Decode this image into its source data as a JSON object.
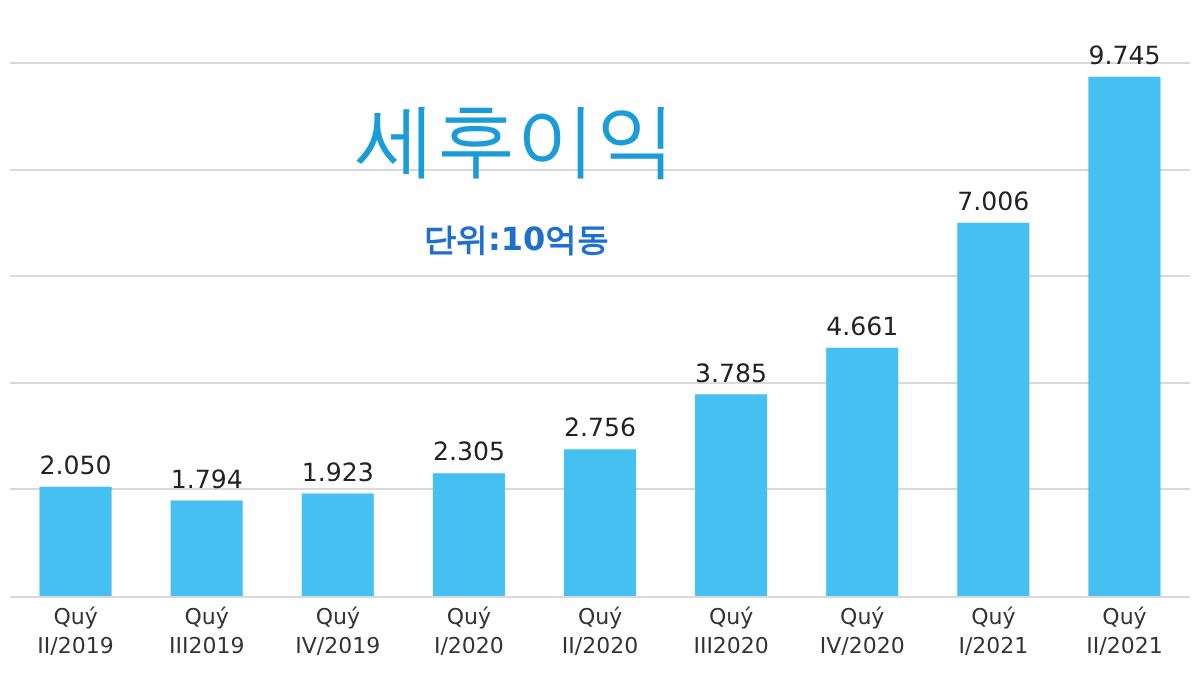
{
  "chart_data": {
    "type": "bar",
    "title": "세후이익",
    "subtitle": "단위:10억동",
    "categories": [
      "Quý II/2019",
      "Quý III2019",
      "Quý IV/2019",
      "Quý I/2020",
      "Quý II/2020",
      "Quý III2020",
      "Quý IV/2020",
      "Quý I/2021",
      "Quý II/2021"
    ],
    "values": [
      2050,
      1794,
      1923,
      2305,
      2756,
      3785,
      4661,
      7006,
      9745
    ],
    "value_labels": [
      "2.050",
      "1.794",
      "1.923",
      "2.305",
      "2.756",
      "3.785",
      "4.661",
      "7.006",
      "9.745"
    ],
    "color": "#45c0f0",
    "grid": "y",
    "tick_labels": "x"
  }
}
